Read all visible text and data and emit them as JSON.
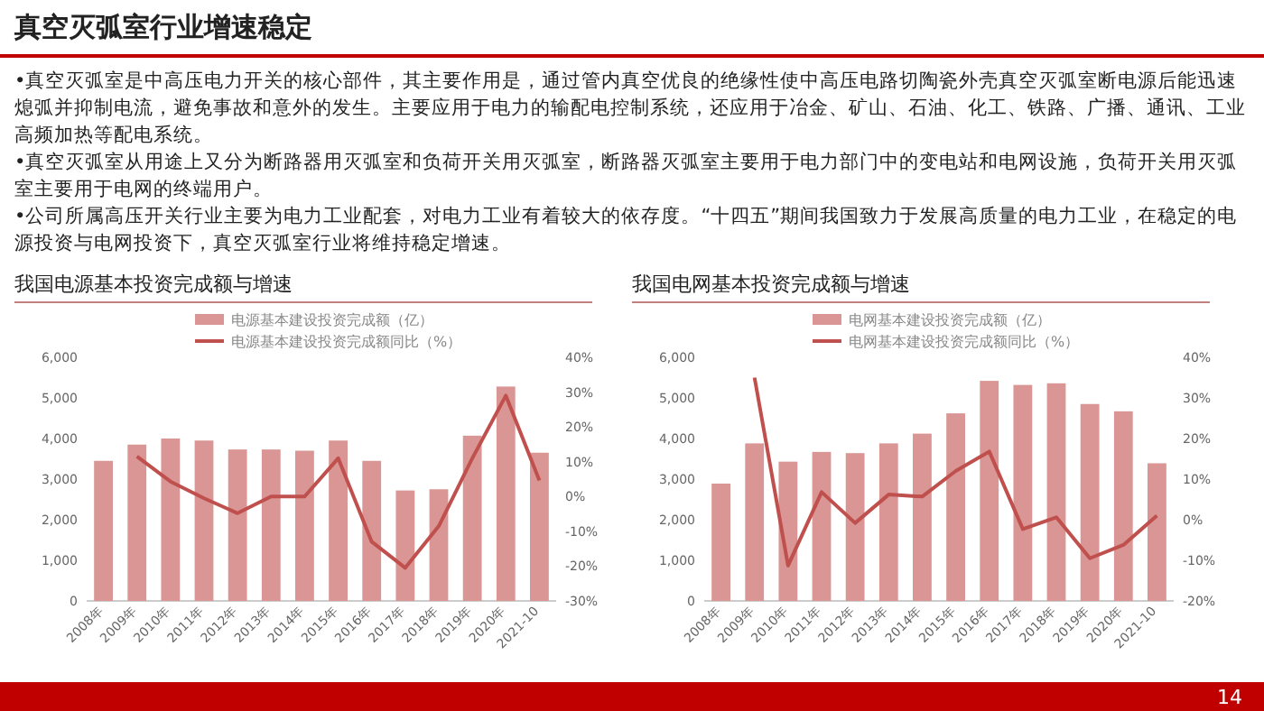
{
  "chart_data": [
    {
      "type": "other",
      "title": "真空灭弧室行业增速稳定",
      "annotations": [
        "•真空灭弧室是中高压电力开关的核心部件，其主要作用是，通过管内真空优良的绝缘性使中高压电路切陶瓷外壳真空灭弧室断电源后能迅速熄弧并抑制电流，避免事故和意外的发生。主要应用于电力的输配电控制系统，还应用于冶金、矿山、石油、化工、铁路、广播、通讯、工业高频加热等配电系统。",
        "•真空灭弧室从用途上又分为断路器用灭弧室和负荷开关用灭弧室，断路器灭弧室主要用于电力部门中的变电站和电网设施，负荷开关用灭弧室主要用于电网的终端用户。",
        "•公司所属高压开关行业主要为电力工业配套，对电力工业有着较大的依存度。“十四五”期间我国致力于发展高质量的电力工业，在稳定的电源投资与电网投资下，真空灭弧室行业将维持稳定增速。",
        "14"
      ]
    },
    {
      "type": "bar",
      "title": "我国电源基本投资完成额与增速",
      "categories": [
        "2008年",
        "2009年",
        "2010年",
        "2011年",
        "2012年",
        "2013年",
        "2014年",
        "2015年",
        "2016年",
        "2017年",
        "2018年",
        "2019年",
        "2020年",
        "2021-10"
      ],
      "series": [
        {
          "name": "电源基本建设投资完成额（亿）",
          "type": "bar",
          "color": "#d99694",
          "values": [
            3450,
            3850,
            4000,
            3950,
            3730,
            3730,
            3700,
            3950,
            3450,
            2720,
            2750,
            4070,
            5280,
            3650
          ]
        },
        {
          "name": "电源基本建设投资完成额同比（%）",
          "type": "line",
          "axis": "y2",
          "color": "#c0504d",
          "values": [
            null,
            11.5,
            4.3,
            -0.5,
            -4.8,
            0,
            0,
            11,
            -13,
            -20.5,
            -8.5,
            11,
            29,
            4.6
          ]
        }
      ],
      "ylim": [
        0,
        6000
      ],
      "yticks": [
        0,
        {
          "value": 1000,
          "label": "1,000"
        },
        {
          "value": 2000,
          "label": "2,000"
        },
        {
          "value": 3000,
          "label": "3,000"
        },
        {
          "value": 4000,
          "label": "4,000"
        },
        {
          "value": 5000,
          "label": "5,000"
        },
        {
          "value": 6000,
          "label": "6,000"
        }
      ],
      "y2lim": [
        -30,
        40
      ],
      "y2ticks": [
        {
          "value": -30,
          "label": "-30%"
        },
        {
          "value": -20,
          "label": "-20%"
        },
        {
          "value": -10,
          "label": "-10%"
        },
        {
          "value": 0,
          "label": "0%"
        },
        {
          "value": 10,
          "label": "10%"
        },
        {
          "value": 20,
          "label": "20%"
        },
        {
          "value": 30,
          "label": "30%"
        },
        {
          "value": 40,
          "label": "40%"
        }
      ],
      "legend": "top",
      "grid": false,
      "marker": "none"
    },
    {
      "type": "bar",
      "title": "我国电网基本投资完成额与增速",
      "categories": [
        "2008年",
        "2009年",
        "2010年",
        "2011年",
        "2012年",
        "2013年",
        "2014年",
        "2015年",
        "2016年",
        "2017年",
        "2018年",
        "2019年",
        "2020年",
        "2021-10"
      ],
      "series": [
        {
          "name": "电网基本建设投资完成额（亿）",
          "type": "bar",
          "color": "#d99694",
          "values": [
            2890,
            3880,
            3430,
            3670,
            3640,
            3880,
            4120,
            4620,
            5420,
            5320,
            5360,
            4850,
            4670,
            3390
          ]
        },
        {
          "name": "电网基本建设投资完成额同比（%）",
          "type": "line",
          "axis": "y2",
          "color": "#c0504d",
          "values": [
            null,
            35,
            -11.3,
            6.8,
            -0.8,
            6.2,
            5.7,
            12,
            16.8,
            -2.3,
            0.6,
            -9.5,
            -6.2,
            1
          ]
        }
      ],
      "ylim": [
        0,
        6000
      ],
      "yticks": [
        0,
        {
          "value": 1000,
          "label": "1,000"
        },
        {
          "value": 2000,
          "label": "2,000"
        },
        {
          "value": 3000,
          "label": "3,000"
        },
        {
          "value": 4000,
          "label": "4,000"
        },
        {
          "value": 5000,
          "label": "5,000"
        },
        {
          "value": 6000,
          "label": "6,000"
        }
      ],
      "y2lim": [
        -20,
        40
      ],
      "y2ticks": [
        {
          "value": -20,
          "label": "-20%"
        },
        {
          "value": -10,
          "label": "-10%"
        },
        {
          "value": 0,
          "label": "0%"
        },
        {
          "value": 10,
          "label": "10%"
        },
        {
          "value": 20,
          "label": "20%"
        },
        {
          "value": 30,
          "label": "30%"
        },
        {
          "value": 40,
          "label": "40%"
        }
      ],
      "legend": "top",
      "grid": false,
      "marker": "none"
    }
  ]
}
